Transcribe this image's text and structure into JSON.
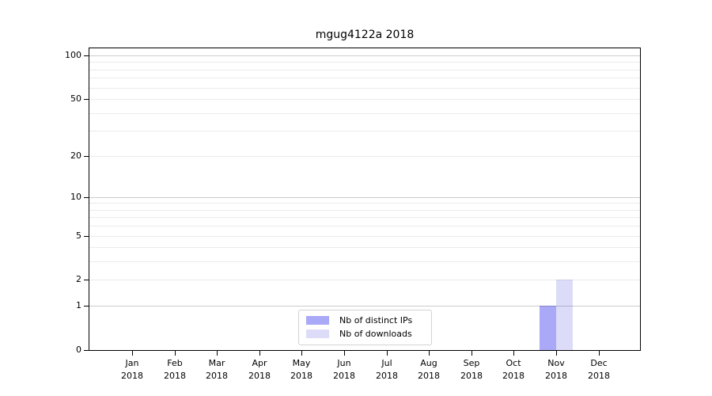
{
  "chart_data": {
    "type": "bar",
    "title": "mgug4122a 2018",
    "xlabel": "",
    "ylabel": "",
    "x_axis": {
      "categories": [
        "Jan",
        "Feb",
        "Mar",
        "Apr",
        "May",
        "Jun",
        "Jul",
        "Aug",
        "Sep",
        "Oct",
        "Nov",
        "Dec"
      ],
      "year_line": "2018"
    },
    "y_axis": {
      "scale": "log1p",
      "tick_values": [
        0,
        1,
        2,
        5,
        10,
        20,
        50,
        100
      ],
      "tick_labels": [
        "0",
        "1",
        "2",
        "5",
        "10",
        "20",
        "50",
        "100"
      ],
      "minor_gridlines": [
        2,
        3,
        4,
        5,
        6,
        7,
        8,
        9,
        20,
        30,
        40,
        50,
        60,
        70,
        80,
        90
      ],
      "major_gridlines": [
        1,
        10,
        100
      ],
      "range": [
        0,
        110
      ],
      "grid": true
    },
    "series": [
      {
        "name": "Nb of distinct IPs",
        "color": "#a9a9f7",
        "values": [
          0,
          0,
          0,
          0,
          0,
          0,
          0,
          0,
          0,
          0,
          1,
          0
        ]
      },
      {
        "name": "Nb of downloads",
        "color": "#dcdcf9",
        "values": [
          0,
          0,
          0,
          0,
          0,
          0,
          0,
          0,
          0,
          0,
          2,
          0
        ]
      }
    ],
    "legend": {
      "position": "bottom-center",
      "entries": [
        "Nb of distinct IPs",
        "Nb of downloads"
      ]
    },
    "colors": {
      "bar_distinct_ips": "#a9a9f7",
      "bar_downloads": "#dcdcf9",
      "major_grid": "rgba(0,0,0,0.20)",
      "minor_grid": "rgba(0,0,0,0.08)",
      "axis": "#000000",
      "text": "#000000",
      "legend_border": "#d2d2d2"
    }
  }
}
